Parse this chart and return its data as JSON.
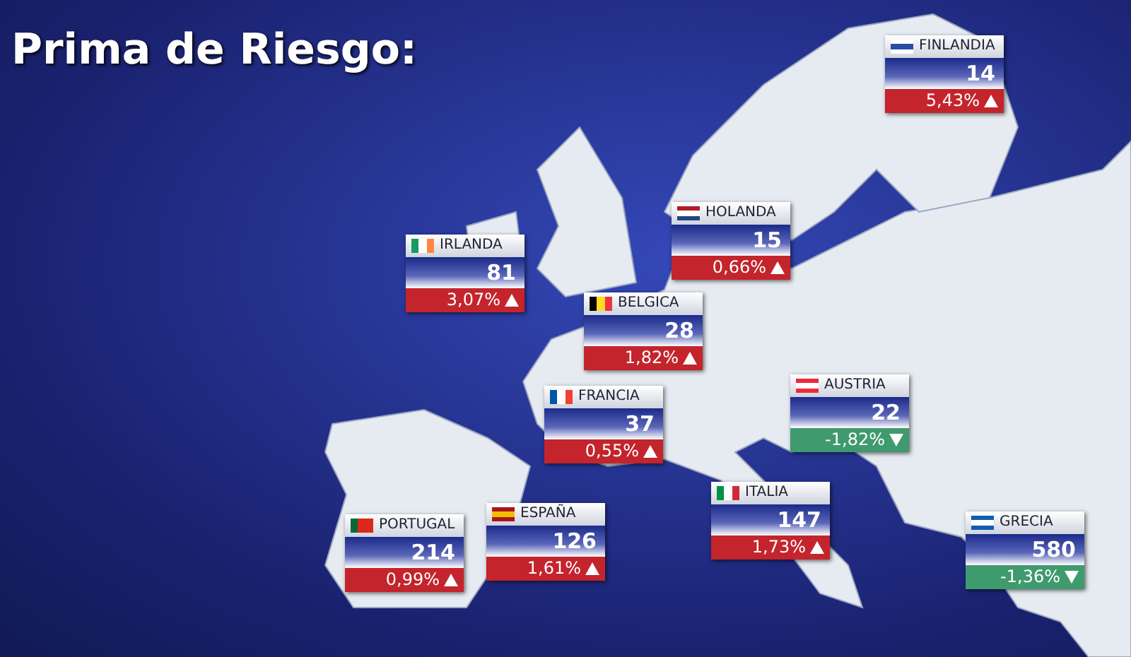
{
  "chart_data": {
    "type": "other",
    "title": "Prima de Riesgo:",
    "categories": [
      "FINLANDIA",
      "HOLANDA",
      "IRLANDA",
      "BELGICA",
      "AUSTRIA",
      "FRANCIA",
      "ITALIA",
      "ESPAÑA",
      "GRECIA",
      "PORTUGAL"
    ],
    "series": [
      {
        "values": [
          14,
          15,
          81,
          28,
          22,
          37,
          147,
          126,
          580,
          214
        ]
      },
      {
        "values": [
          5.43,
          0.66,
          3.07,
          1.82,
          -1.82,
          0.55,
          1.73,
          1.61,
          -1.36,
          0.99
        ],
        "value_labels": [
          "5,43%",
          "0,66%",
          "3,07%",
          "1,82%",
          "-1,82%",
          "0,55%",
          "1,73%",
          "1,61%",
          "-1,36%",
          "0,99%"
        ],
        "colors": [
          "#c4242c",
          "#c4242c",
          "#c4242c",
          "#c4242c",
          "#3f9a6e",
          "#c4242c",
          "#c4242c",
          "#c4242c",
          "#3f9a6e",
          "#c4242c"
        ]
      }
    ],
    "data_labels": true
  }
}
